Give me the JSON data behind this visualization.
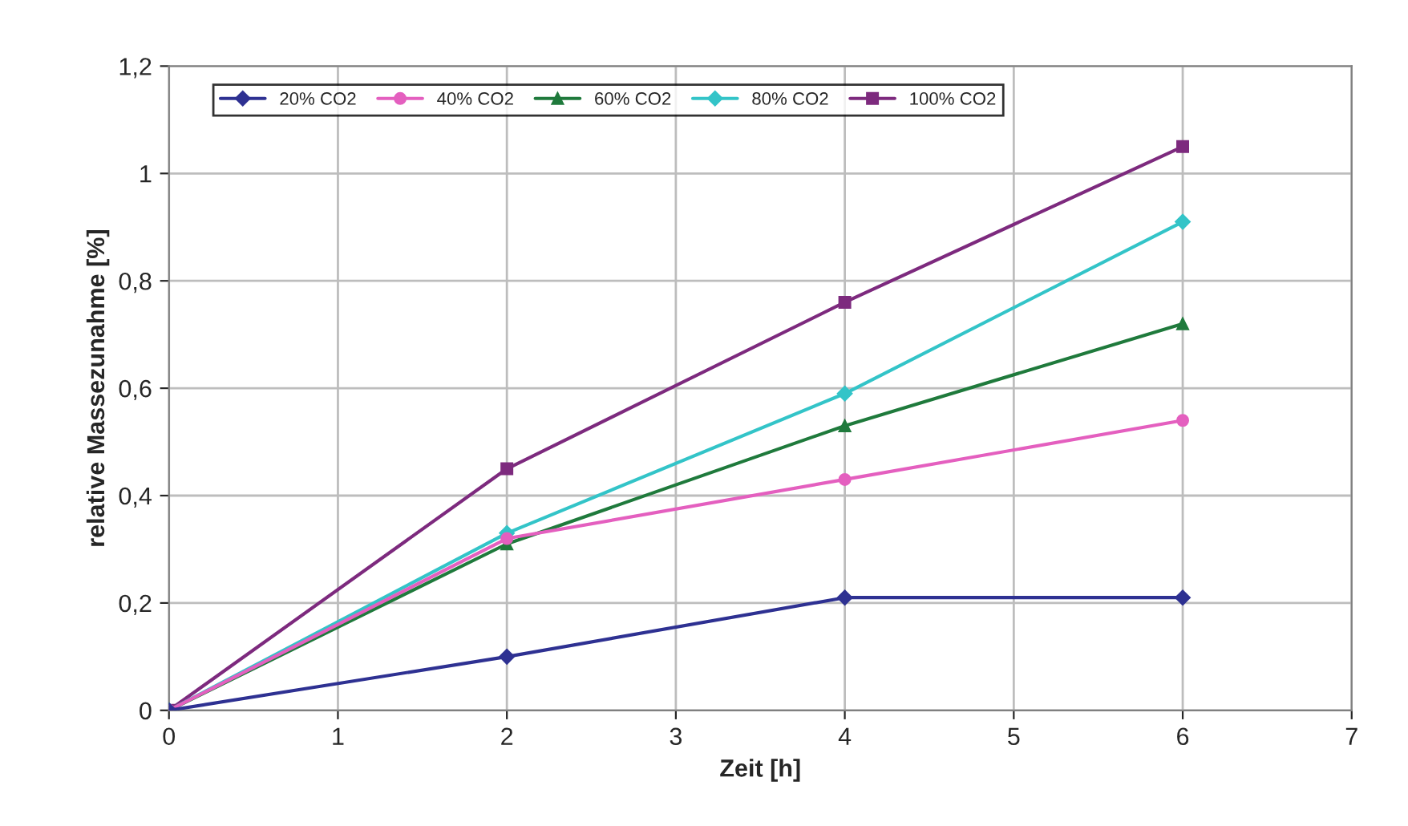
{
  "chart_data": {
    "type": "line",
    "xlabel": "Zeit [h]",
    "ylabel": "relative Massezunahme [%]",
    "x": [
      0,
      2,
      4,
      6
    ],
    "series": [
      {
        "name": "20% CO2",
        "color": "#2e3192",
        "marker": "diamond",
        "values": [
          0,
          0.1,
          0.21,
          0.21
        ]
      },
      {
        "name": "40% CO2",
        "color": "#e45fbf",
        "marker": "circle",
        "values": [
          0,
          0.32,
          0.43,
          0.54
        ]
      },
      {
        "name": "60% CO2",
        "color": "#1f7a3c",
        "marker": "triangle",
        "values": [
          0,
          0.31,
          0.53,
          0.72
        ]
      },
      {
        "name": "80% CO2",
        "color": "#33c4c8",
        "marker": "diamond",
        "values": [
          0,
          0.33,
          0.59,
          0.91
        ]
      },
      {
        "name": "100% CO2",
        "color": "#7d2a7e",
        "marker": "square",
        "values": [
          0,
          0.45,
          0.76,
          1.05
        ]
      }
    ],
    "xlim": [
      0,
      7
    ],
    "xticks": [
      0,
      1,
      2,
      3,
      4,
      5,
      6,
      7
    ],
    "ylim": [
      0,
      1.2
    ],
    "yticks": [
      0,
      {
        "value": 0.2,
        "label": "0,2"
      },
      {
        "value": 0.4,
        "label": "0,4"
      },
      {
        "value": 0.6,
        "label": "0,6"
      },
      {
        "value": 0.8,
        "label": "0,8"
      },
      1,
      {
        "value": 1.2,
        "label": "1,2"
      }
    ],
    "grid": true,
    "legend": "top left"
  }
}
